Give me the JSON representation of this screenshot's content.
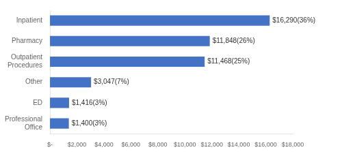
{
  "chart_data": {
    "type": "bar",
    "orientation": "horizontal",
    "categories": [
      "Inpatient",
      "Pharmacy",
      "Outpatient\nProcedures",
      "Other",
      "ED",
      "Professional\nOffice"
    ],
    "values": [
      16290,
      11848,
      11468,
      3047,
      1416,
      1400
    ],
    "value_labels": [
      "$16,290(36%)",
      "$11,848(26%)",
      "$11,468(25%)",
      "$3,047(7%)",
      "$1,416(3%)",
      "$1,400(3%)"
    ],
    "data_labels": true,
    "color": "#4472C4",
    "xlim": [
      0,
      18000
    ],
    "xticks": [
      {
        "value": 0,
        "label": "$-"
      },
      {
        "value": 2000,
        "label": "$2,000"
      },
      {
        "value": 4000,
        "label": "$4,000"
      },
      {
        "value": 6000,
        "label": "$6,000"
      },
      {
        "value": 8000,
        "label": "$8,000"
      },
      {
        "value": 10000,
        "label": "$10,000"
      },
      {
        "value": 12000,
        "label": "$12,000"
      },
      {
        "value": 14000,
        "label": "$14,000"
      },
      {
        "value": 16000,
        "label": "$16,000"
      },
      {
        "value": 18000,
        "label": "$18,000"
      }
    ],
    "grid": false
  }
}
